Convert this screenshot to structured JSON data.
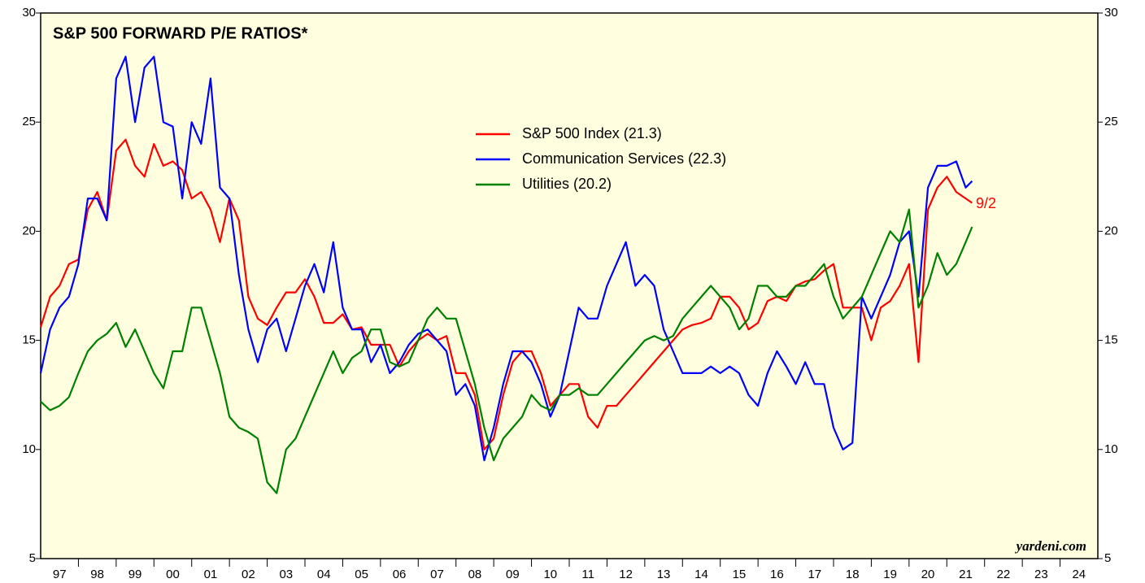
{
  "chart_data": {
    "type": "line",
    "title": "S&P 500 FORWARD P/E RATIOS*",
    "x": [
      1997,
      1997.25,
      1997.5,
      1997.75,
      1998,
      1998.25,
      1998.5,
      1998.75,
      1999,
      1999.25,
      1999.5,
      1999.75,
      2000,
      2000.25,
      2000.5,
      2000.75,
      2001,
      2001.25,
      2001.5,
      2001.75,
      2002,
      2002.25,
      2002.5,
      2002.75,
      2003,
      2003.25,
      2003.5,
      2003.75,
      2004,
      2004.25,
      2004.5,
      2004.75,
      2005,
      2005.25,
      2005.5,
      2005.75,
      2006,
      2006.25,
      2006.5,
      2006.75,
      2007,
      2007.25,
      2007.5,
      2007.75,
      2008,
      2008.25,
      2008.5,
      2008.75,
      2009,
      2009.25,
      2009.5,
      2009.75,
      2010,
      2010.25,
      2010.5,
      2010.75,
      2011,
      2011.25,
      2011.5,
      2011.75,
      2012,
      2012.25,
      2012.5,
      2012.75,
      2013,
      2013.25,
      2013.5,
      2013.75,
      2014,
      2014.25,
      2014.5,
      2014.75,
      2015,
      2015.25,
      2015.5,
      2015.75,
      2016,
      2016.25,
      2016.5,
      2016.75,
      2017,
      2017.25,
      2017.5,
      2017.75,
      2018,
      2018.25,
      2018.5,
      2018.75,
      2019,
      2019.25,
      2019.5,
      2019.75,
      2020,
      2020.25,
      2020.5,
      2020.75,
      2021,
      2021.25,
      2021.5,
      2021.67
    ],
    "series": [
      {
        "name": "S&P 500 Index (21.3)",
        "color": "#ff0000",
        "values": [
          15.6,
          17,
          17.5,
          18.5,
          18.7,
          21,
          21.8,
          20.5,
          23.7,
          24.2,
          23,
          22.5,
          24,
          23,
          23.2,
          22.8,
          21.5,
          21.8,
          21,
          19.5,
          21.5,
          20.5,
          17,
          16,
          15.7,
          16.5,
          17.2,
          17.2,
          17.8,
          17,
          15.8,
          15.8,
          16.2,
          15.5,
          15.6,
          14.8,
          14.8,
          14.8,
          13.8,
          14.5,
          15,
          15.3,
          15,
          15.2,
          13.5,
          13.5,
          12.5,
          10,
          10.5,
          12.5,
          14,
          14.5,
          14.5,
          13.5,
          12,
          12.5,
          13,
          13,
          11.5,
          11,
          12,
          12,
          12.5,
          13,
          13.5,
          14,
          14.5,
          15,
          15.5,
          15.7,
          15.8,
          16,
          17,
          17,
          16.5,
          15.5,
          15.8,
          16.8,
          17,
          16.8,
          17.5,
          17.7,
          17.8,
          18.2,
          18.5,
          16.5,
          16.5,
          16.5,
          15,
          16.5,
          16.8,
          17.5,
          18.5,
          14,
          21,
          22,
          22.5,
          21.8,
          21.5,
          21.3
        ]
      },
      {
        "name": "Communication Services (22.3)",
        "color": "#0000ff",
        "values": [
          13.5,
          15.5,
          16.5,
          17,
          18.5,
          21.5,
          21.5,
          20.5,
          27,
          28,
          25,
          27.5,
          28,
          25,
          24.8,
          21.5,
          25,
          24,
          27,
          22,
          21.5,
          18,
          15.5,
          14,
          15.5,
          16,
          14.5,
          16,
          17.5,
          18.5,
          17.2,
          19.5,
          16.5,
          15.5,
          15.5,
          14,
          14.8,
          13.5,
          14,
          14.8,
          15.3,
          15.5,
          15,
          14.5,
          12.5,
          13,
          12,
          9.5,
          11,
          13,
          14.5,
          14.5,
          14,
          13,
          11.5,
          12.5,
          14.5,
          16.5,
          16,
          16,
          17.5,
          18.5,
          19.5,
          17.5,
          18,
          17.5,
          15.5,
          14.5,
          13.5,
          13.5,
          13.5,
          13.8,
          13.5,
          13.8,
          13.5,
          12.5,
          12,
          13.5,
          14.5,
          13.8,
          13,
          14,
          13,
          13,
          11,
          10,
          10.3,
          17,
          16,
          17,
          18,
          19.5,
          20,
          17,
          22,
          23,
          23,
          23.2,
          22,
          22.3
        ]
      },
      {
        "name": "Utilities (20.2)",
        "color": "#008000",
        "values": [
          12.2,
          11.8,
          12,
          12.4,
          13.5,
          14.5,
          15,
          15.3,
          15.8,
          14.7,
          15.5,
          14.5,
          13.5,
          12.8,
          14.5,
          14.5,
          16.5,
          16.5,
          15,
          13.5,
          11.5,
          11,
          10.8,
          10.5,
          8.5,
          8,
          10,
          10.5,
          11.5,
          12.5,
          13.5,
          14.5,
          13.5,
          14.2,
          14.5,
          15.5,
          15.5,
          14,
          13.8,
          14,
          15,
          16,
          16.5,
          16,
          16,
          14.5,
          13,
          11,
          9.5,
          10.5,
          11,
          11.5,
          12.5,
          12,
          11.8,
          12.5,
          12.5,
          12.8,
          12.5,
          12.5,
          13,
          13.5,
          14,
          14.5,
          15,
          15.2,
          15,
          15.2,
          16,
          16.5,
          17,
          17.5,
          17,
          16.5,
          15.5,
          16,
          17.5,
          17.5,
          17,
          17,
          17.5,
          17.5,
          18,
          18.5,
          17,
          16,
          16.5,
          17,
          18,
          19,
          20,
          19.5,
          21,
          16.5,
          17.5,
          19,
          18,
          18.5,
          19.5,
          20.2
        ]
      }
    ],
    "xlim": [
      1997,
      2025
    ],
    "xticks": [
      {
        "value": 1997.5,
        "label": "97"
      },
      {
        "value": 1998.5,
        "label": "98"
      },
      {
        "value": 1999.5,
        "label": "99"
      },
      {
        "value": 2000.5,
        "label": "00"
      },
      {
        "value": 2001.5,
        "label": "01"
      },
      {
        "value": 2002.5,
        "label": "02"
      },
      {
        "value": 2003.5,
        "label": "03"
      },
      {
        "value": 2004.5,
        "label": "04"
      },
      {
        "value": 2005.5,
        "label": "05"
      },
      {
        "value": 2006.5,
        "label": "06"
      },
      {
        "value": 2007.5,
        "label": "07"
      },
      {
        "value": 2008.5,
        "label": "08"
      },
      {
        "value": 2009.5,
        "label": "09"
      },
      {
        "value": 2010.5,
        "label": "10"
      },
      {
        "value": 2011.5,
        "label": "11"
      },
      {
        "value": 2012.5,
        "label": "12"
      },
      {
        "value": 2013.5,
        "label": "13"
      },
      {
        "value": 2014.5,
        "label": "14"
      },
      {
        "value": 2015.5,
        "label": "15"
      },
      {
        "value": 2016.5,
        "label": "16"
      },
      {
        "value": 2017.5,
        "label": "17"
      },
      {
        "value": 2018.5,
        "label": "18"
      },
      {
        "value": 2019.5,
        "label": "19"
      },
      {
        "value": 2020.5,
        "label": "20"
      },
      {
        "value": 2021.5,
        "label": "21"
      },
      {
        "value": 2022.5,
        "label": "22"
      },
      {
        "value": 2023.5,
        "label": "23"
      },
      {
        "value": 2024.5,
        "label": "24"
      }
    ],
    "ylim": [
      5,
      30
    ],
    "yticks": [
      5,
      10,
      15,
      20,
      25,
      30
    ],
    "annotation": "9/2",
    "source": "yardeni.com",
    "grid": false
  }
}
